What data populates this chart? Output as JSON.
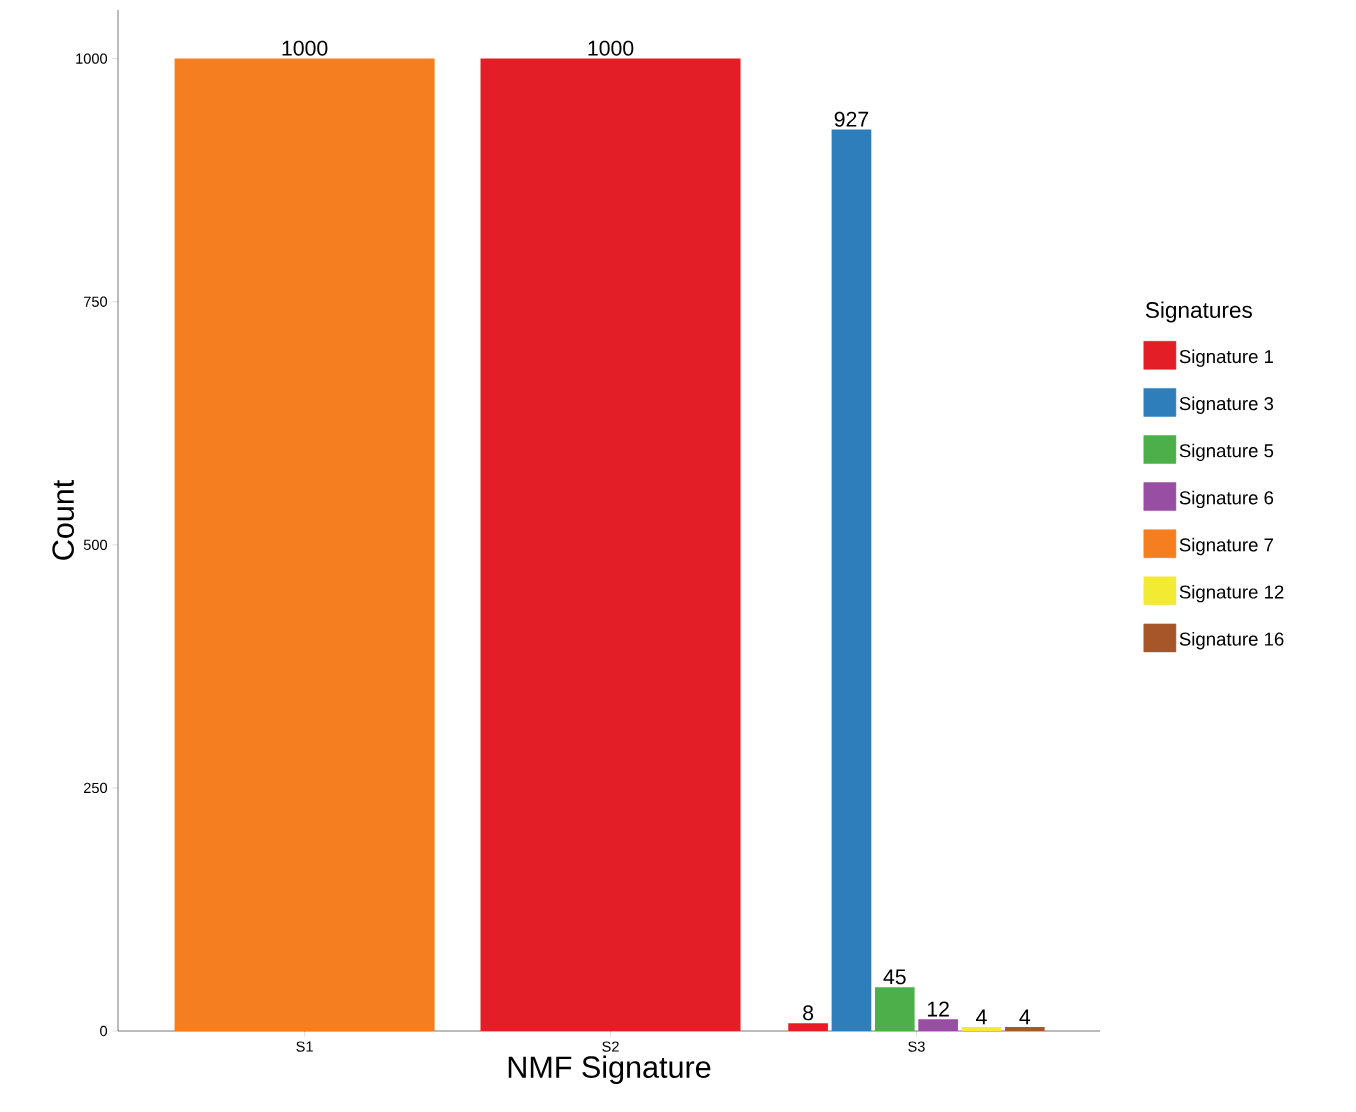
{
  "chart_data": {
    "type": "bar",
    "xlabel": "NMF Signature",
    "ylabel": "Count",
    "legend_title": "Signatures",
    "categories": [
      "S1",
      "S2",
      "S3"
    ],
    "series": [
      {
        "name": "Signature 1",
        "color": "#e31e26",
        "values": [
          null,
          1000,
          8
        ]
      },
      {
        "name": "Signature 3",
        "color": "#2f7ebc",
        "values": [
          null,
          null,
          927
        ]
      },
      {
        "name": "Signature 5",
        "color": "#4daf4a",
        "values": [
          null,
          null,
          45
        ]
      },
      {
        "name": "Signature 6",
        "color": "#984ea3",
        "values": [
          null,
          null,
          12
        ]
      },
      {
        "name": "Signature 7",
        "color": "#f57f20",
        "values": [
          1000,
          null,
          null
        ]
      },
      {
        "name": "Signature 12",
        "color": "#f2ea33",
        "values": [
          null,
          null,
          4
        ]
      },
      {
        "name": "Signature 16",
        "color": "#a65628",
        "values": [
          null,
          null,
          4
        ]
      }
    ],
    "ylim": [
      0,
      1050
    ],
    "yticks": [
      0,
      250,
      500,
      750,
      1000
    ],
    "grid": false,
    "legend": "right",
    "data_labels": true
  }
}
